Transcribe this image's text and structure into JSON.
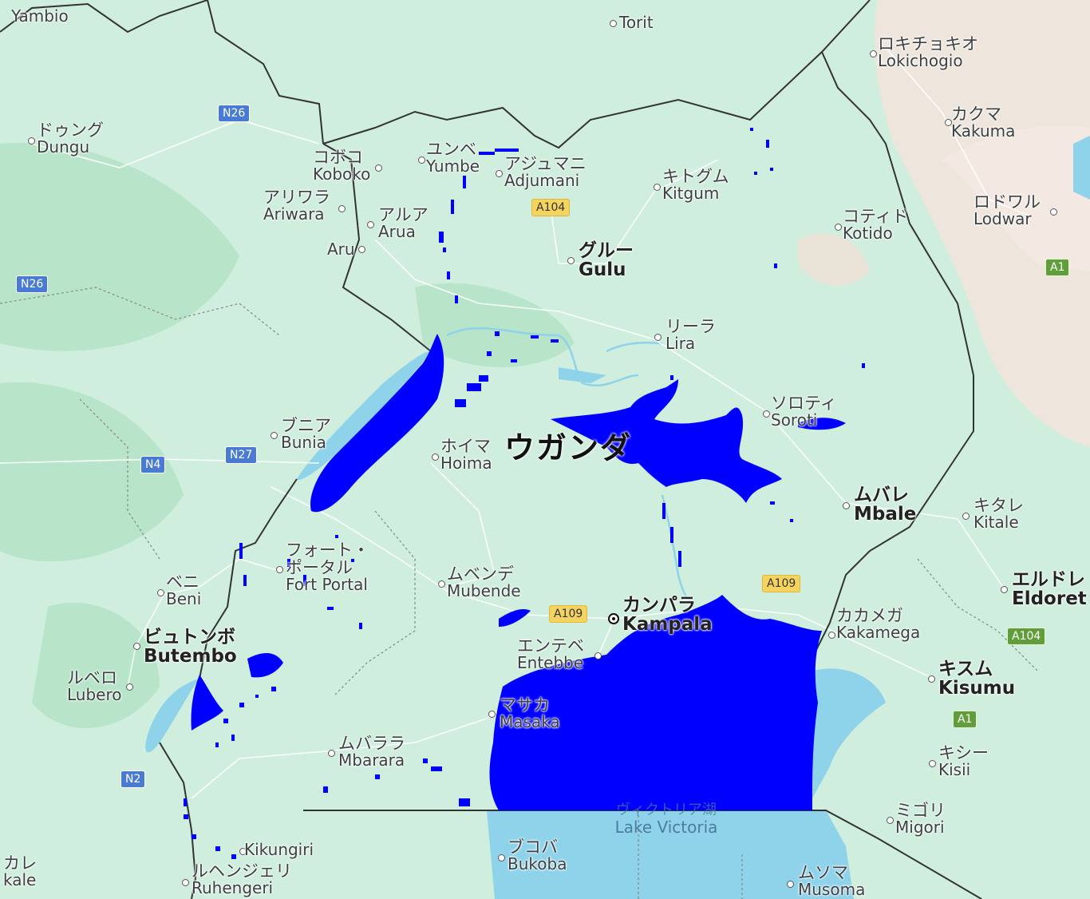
{
  "country_label": "ウガンダ",
  "lake": {
    "jp": "ヴィクトリア湖",
    "en": "Lake Victoria"
  },
  "colors": {
    "land": "#cfeedd",
    "forest": "#b6e4c8",
    "arid": "#f0e6dc",
    "water": "#8fd3ea",
    "flood": "#0000ff",
    "border": "#333333",
    "road_shield_blue": "#4a7bd3",
    "road_shield_yellow": "#f4d35e",
    "road_shield_green": "#5f9e3a"
  },
  "places": [
    {
      "id": "yambio",
      "jp": "",
      "en": "Yambio"
    },
    {
      "id": "torit",
      "jp": "",
      "en": "Torit"
    },
    {
      "id": "lokichogio",
      "jp": "ロキチョキオ",
      "en": "Lokichogio"
    },
    {
      "id": "kakuma",
      "jp": "カクマ",
      "en": "Kakuma"
    },
    {
      "id": "lodwar",
      "jp": "ロドワル",
      "en": "Lodwar"
    },
    {
      "id": "dungu",
      "jp": "ドゥング",
      "en": "Dungu"
    },
    {
      "id": "koboko",
      "jp": "コボコ",
      "en": "Koboko"
    },
    {
      "id": "yumbe",
      "jp": "ユンベ",
      "en": "Yumbe"
    },
    {
      "id": "adjumani",
      "jp": "アジュマニ",
      "en": "Adjumani"
    },
    {
      "id": "kitgum",
      "jp": "キトグム",
      "en": "Kitgum"
    },
    {
      "id": "ariwara",
      "jp": "アリワラ",
      "en": "Ariwara"
    },
    {
      "id": "arua",
      "jp": "アルア",
      "en": "Arua"
    },
    {
      "id": "aru",
      "jp": "",
      "en": "Aru"
    },
    {
      "id": "kotido",
      "jp": "コティド",
      "en": "Kotido"
    },
    {
      "id": "gulu",
      "jp": "グルー",
      "en": "Gulu"
    },
    {
      "id": "lira",
      "jp": "リーラ",
      "en": "Lira"
    },
    {
      "id": "soroti",
      "jp": "ソロティ",
      "en": "Soroti"
    },
    {
      "id": "bunia",
      "jp": "ブニア",
      "en": "Bunia"
    },
    {
      "id": "hoima",
      "jp": "ホイマ",
      "en": "Hoima"
    },
    {
      "id": "mbale",
      "jp": "ムバレ",
      "en": "Mbale"
    },
    {
      "id": "kitale",
      "jp": "キタレ",
      "en": "Kitale"
    },
    {
      "id": "fortportal",
      "jp": "フォート・ポータル",
      "en": "Fort Portal"
    },
    {
      "id": "beni",
      "jp": "ベニ",
      "en": "Beni"
    },
    {
      "id": "mubende",
      "jp": "ムベンデ",
      "en": "Mubende"
    },
    {
      "id": "eldoret",
      "jp": "エルドレ",
      "en": "Eldoret"
    },
    {
      "id": "kampala",
      "jp": "カンパラ",
      "en": "Kampala"
    },
    {
      "id": "kakamega",
      "jp": "カカメガ",
      "en": "Kakamega"
    },
    {
      "id": "butembo",
      "jp": "ビュトンボ",
      "en": "Butembo"
    },
    {
      "id": "entebbe",
      "jp": "エンテベ",
      "en": "Entebbe"
    },
    {
      "id": "kisumu",
      "jp": "キスム",
      "en": "Kisumu"
    },
    {
      "id": "lubero",
      "jp": "ルベロ",
      "en": "Lubero"
    },
    {
      "id": "masaka",
      "jp": "マサカ",
      "en": "Masaka"
    },
    {
      "id": "mbarara",
      "jp": "ムバララ",
      "en": "Mbarara"
    },
    {
      "id": "kisii",
      "jp": "キシー",
      "en": "Kisii"
    },
    {
      "id": "migori",
      "jp": "ミゴリ",
      "en": "Migori"
    },
    {
      "id": "kikungiri",
      "jp": "",
      "en": "Kikungiri"
    },
    {
      "id": "ruhengeri",
      "jp": "ルヘンジェリ",
      "en": "Ruhengeri"
    },
    {
      "id": "bukoba",
      "jp": "ブコバ",
      "en": "Bukoba"
    },
    {
      "id": "musoma",
      "jp": "ムソマ",
      "en": "Musoma"
    },
    {
      "id": "kale",
      "jp": "カレ",
      "en": "kale"
    }
  ],
  "roads": [
    {
      "id": "n26a",
      "label": "N26",
      "style": "blue"
    },
    {
      "id": "n26b",
      "label": "N26",
      "style": "blue"
    },
    {
      "id": "n4",
      "label": "N4",
      "style": "blue"
    },
    {
      "id": "n27",
      "label": "N27",
      "style": "blue"
    },
    {
      "id": "n2",
      "label": "N2",
      "style": "blue"
    },
    {
      "id": "a104a",
      "label": "A104",
      "style": "yellow"
    },
    {
      "id": "a109a",
      "label": "A109",
      "style": "yellow"
    },
    {
      "id": "a109b",
      "label": "A109",
      "style": "yellow"
    },
    {
      "id": "a1a",
      "label": "A1",
      "style": "green"
    },
    {
      "id": "a104b",
      "label": "A104",
      "style": "green"
    },
    {
      "id": "a1b",
      "label": "A1",
      "style": "green"
    }
  ]
}
